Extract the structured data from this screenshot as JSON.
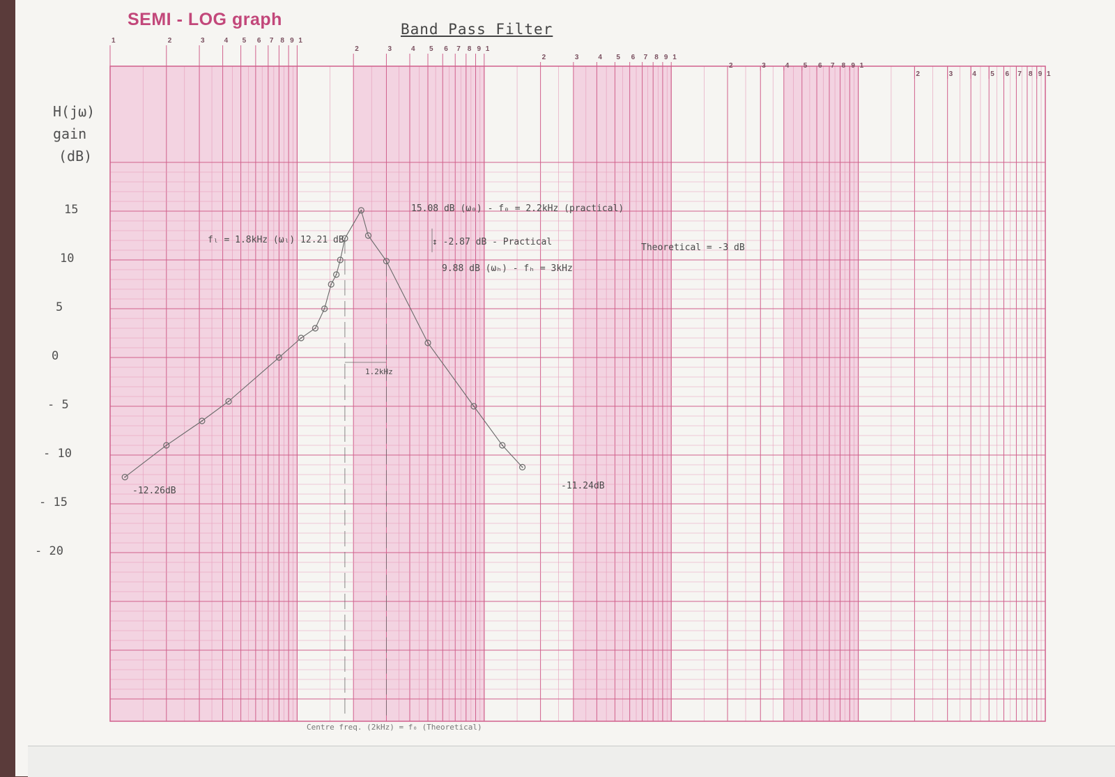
{
  "header": {
    "paper_title": "SEMI - LOG graph",
    "handwritten_title": "Band Pass Filter"
  },
  "colors": {
    "grid_major": "#d0608c",
    "grid_minor": "#e59ab8",
    "band_shade": "#f3d3e1",
    "ink": "#6a6a6a",
    "paper": "#f6f5f2"
  },
  "axis": {
    "ylabel_lines": [
      "H(jω)",
      "gain",
      "(dB)"
    ],
    "yticks": [
      "15",
      "10",
      "5",
      "0",
      "- 5",
      "- 10",
      "- 15",
      "- 20"
    ],
    "cycle_ticks": [
      "1",
      "2",
      "3",
      "4",
      "5",
      "6",
      "7",
      "8",
      "9",
      "1"
    ]
  },
  "annotations": {
    "peak": "15.08 dB (ω₀) - f₀ = 2.2kHz (practical)",
    "fl": "fₗ = 1.8kHz (ωₗ)  12.21 dB",
    "drop": "↕ -2.87 dB - Practical",
    "theoretical": "Theoretical = -3 dB",
    "fh": "9.88 dB (ωₕ) - fₕ = 3kHz",
    "bandwidth": "1.2kHz",
    "left_end": "-12.26dB",
    "right_end": "-11.24dB",
    "bottom_note": "Centre freq. (2kHz) = f₀ (Theoretical)"
  },
  "chart_data": {
    "type": "line",
    "title": "Band Pass Filter",
    "ylabel": "H(jω) gain (dB)",
    "xlabel": "",
    "xscale": "log",
    "xlim": [
      100,
      10000000
    ],
    "ylim": [
      -25,
      20
    ],
    "grid": true,
    "series": [
      {
        "x": [
          120,
          200,
          310,
          430,
          800,
          1050,
          1250,
          1400,
          1520,
          1620,
          1700,
          1800,
          2200,
          2400,
          3000,
          5000,
          8800,
          12500,
          16000
        ],
        "y": [
          -12.26,
          -9,
          -6.5,
          -4.5,
          0,
          2,
          3,
          5,
          7.5,
          8.5,
          10,
          12.21,
          15.08,
          12.5,
          9.88,
          1.5,
          -5,
          -9,
          -11.24
        ]
      }
    ]
  }
}
